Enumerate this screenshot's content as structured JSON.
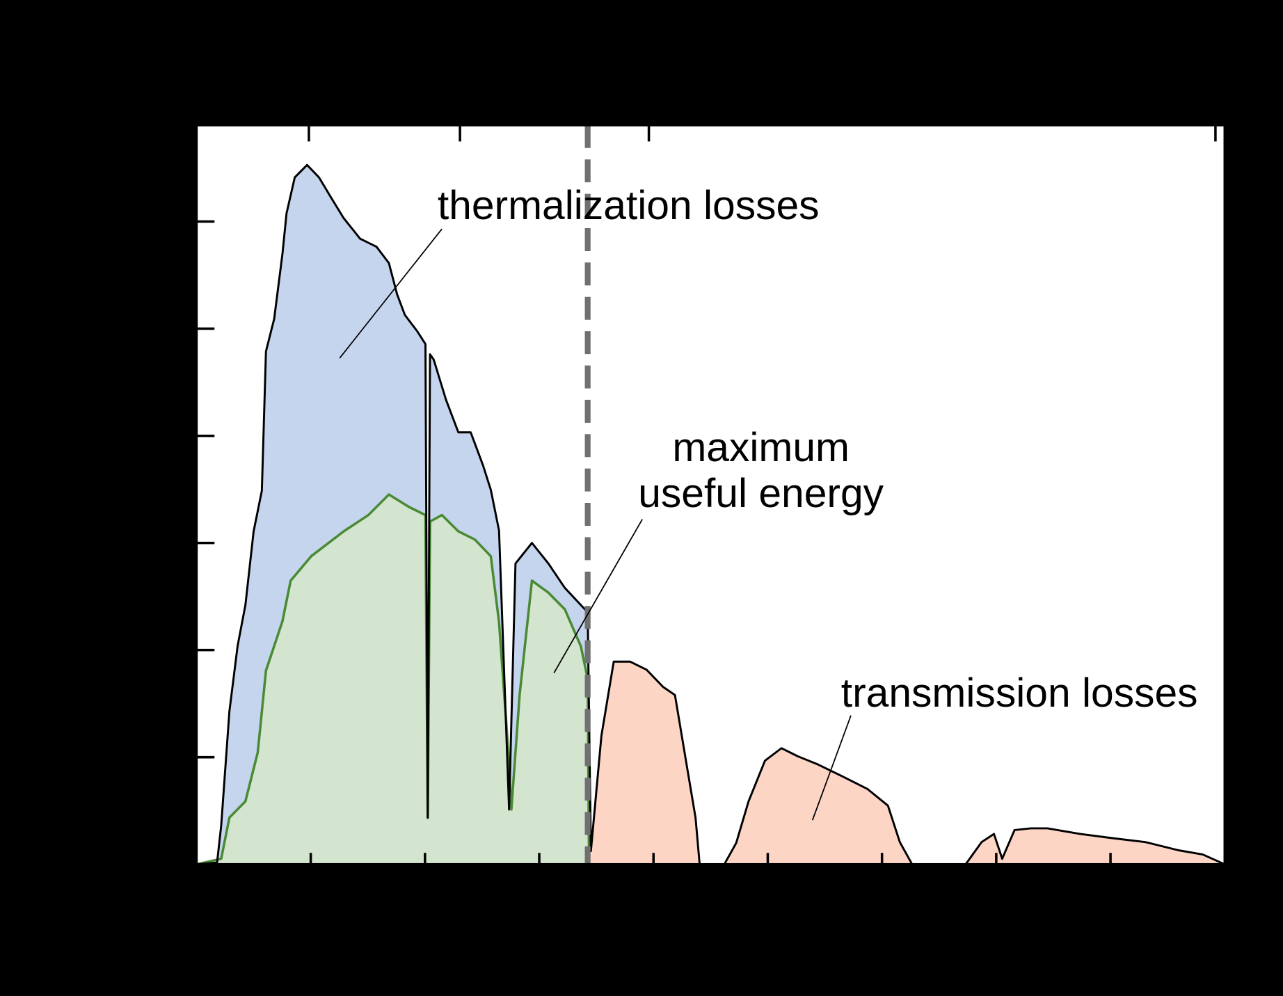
{
  "chart_data": {
    "type": "line",
    "xlim": [
      250,
      2500
    ],
    "ylim": [
      0,
      1.725
    ],
    "xticks": [
      500,
      750,
      1000,
      1250,
      1500,
      1750,
      2000,
      2250
    ],
    "x2ticks": [
      2.5,
      1.5,
      1,
      0.5
    ],
    "yticks": [
      0,
      0.25,
      0.5,
      0.75,
      1,
      1.25,
      1.5
    ],
    "bandgap": 1106,
    "bandgap_color": "#707070",
    "fill_colors": [
      "#c5d5ee",
      "#d3e4cf",
      "#fcd5c5"
    ],
    "series": [
      {
        "color": "#000000",
        "x": [
          250,
          295,
          304,
          322,
          340,
          357,
          375,
          393,
          402,
          420,
          438,
          447,
          465,
          492,
          518,
          545,
          572,
          608,
          644,
          671,
          689,
          706,
          733,
          751,
          756,
          761,
          769,
          796,
          823,
          850,
          877,
          894,
          912,
          934,
          948,
          984,
          1020,
          1056,
          1106,
          1113,
          1136,
          1163,
          1199,
          1235,
          1271,
          1297,
          1324,
          1342,
          1351,
          1405,
          1431,
          1458,
          1494,
          1530,
          1566,
          1610,
          1664,
          1718,
          1763,
          1789,
          1816,
          1933,
          1968,
          1995,
          2013,
          2040,
          2076,
          2112,
          2183,
          2255,
          2326,
          2398,
          2452,
          2500
        ],
        "values": [
          0,
          0.004,
          0.09,
          0.357,
          0.51,
          0.605,
          0.777,
          0.872,
          1.197,
          1.273,
          1.424,
          1.519,
          1.603,
          1.632,
          1.603,
          1.555,
          1.508,
          1.46,
          1.441,
          1.403,
          1.33,
          1.282,
          1.244,
          1.214,
          0.109,
          1.19,
          1.178,
          1.084,
          1.008,
          1.008,
          0.931,
          0.874,
          0.779,
          0.128,
          0.702,
          0.75,
          0.702,
          0.645,
          0.588,
          0.031,
          0.3,
          0.473,
          0.473,
          0.454,
          0.414,
          0.395,
          0.223,
          0.109,
          0,
          0,
          0.05,
          0.147,
          0.242,
          0.271,
          0.252,
          0.233,
          0.205,
          0.176,
          0.137,
          0.052,
          0,
          0,
          0.052,
          0.071,
          0.013,
          0.08,
          0.084,
          0.084,
          0.071,
          0.061,
          0.052,
          0.033,
          0.023,
          0
        ]
      },
      {
        "color": "#4a8a35",
        "x": [
          250,
          304,
          322,
          357,
          384,
          402,
          438,
          456,
          501,
          572,
          626,
          671,
          715,
          751,
          756,
          761,
          787,
          823,
          859,
          894,
          912,
          930,
          939,
          957,
          984,
          1020,
          1056,
          1091,
          1106,
          1109
        ],
        "values": [
          0,
          0.013,
          0.109,
          0.147,
          0.261,
          0.452,
          0.567,
          0.662,
          0.719,
          0.777,
          0.815,
          0.863,
          0.834,
          0.815,
          0.109,
          0.8,
          0.815,
          0.777,
          0.758,
          0.719,
          0.565,
          0.298,
          0.128,
          0.395,
          0.662,
          0.634,
          0.595,
          0.509,
          0.433,
          0
        ]
      }
    ],
    "annotations": [
      {
        "text": [
          "thermalization losses"
        ]
      },
      {
        "text": [
          "maximum",
          "useful energy"
        ]
      },
      {
        "text": [
          "transmission losses"
        ]
      }
    ]
  }
}
